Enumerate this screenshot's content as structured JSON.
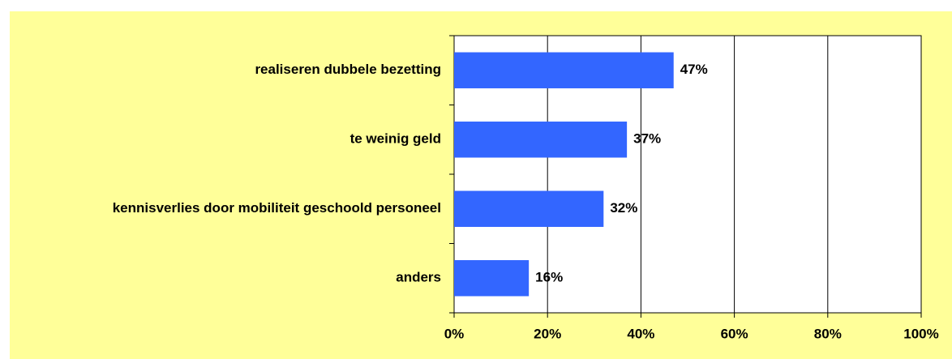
{
  "chart_data": {
    "type": "barh",
    "categories": [
      "realiseren dubbele bezetting",
      "te weinig geld",
      "kennisverlies door mobiliteit geschoold personeel",
      "anders"
    ],
    "values": [
      47,
      37,
      32,
      16
    ],
    "value_labels": [
      "47%",
      "37%",
      "32%",
      "16%"
    ],
    "color": "#3366ff",
    "xlim": [
      0,
      100
    ],
    "xticks": [
      {
        "value": 0,
        "label": "0%"
      },
      {
        "value": 20,
        "label": "20%"
      },
      {
        "value": 40,
        "label": "40%"
      },
      {
        "value": 60,
        "label": "60%"
      },
      {
        "value": 80,
        "label": "80%"
      },
      {
        "value": 100,
        "label": "100%"
      }
    ],
    "grid": true
  }
}
